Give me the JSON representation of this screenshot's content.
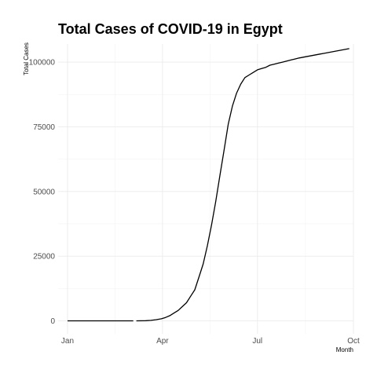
{
  "chart_data": {
    "type": "line",
    "title": "Total Cases of COVID-19 in Egypt",
    "xlabel": "Month",
    "ylabel": "Total Cases",
    "x_ticks": [
      {
        "label": "Jan",
        "day": 0
      },
      {
        "label": "Apr",
        "day": 91
      },
      {
        "label": "Jul",
        "day": 182
      },
      {
        "label": "Oct",
        "day": 274
      }
    ],
    "y_ticks": [
      {
        "label": "0",
        "value": 0
      },
      {
        "label": "25000",
        "value": 25000
      },
      {
        "label": "50000",
        "value": 50000
      },
      {
        "label": "75000",
        "value": 75000
      },
      {
        "label": "100000",
        "value": 100000
      }
    ],
    "xlim_days": [
      -9,
      274
    ],
    "ylim": [
      -5000,
      107000
    ],
    "grid": true,
    "series": [
      {
        "name": "Total Cases",
        "segments": [
          {
            "days": [
              0,
              63
            ],
            "values": [
              0,
              0
            ]
          },
          {
            "days": [
              66,
              75,
              80,
              85,
              90,
              94,
              98,
              102,
              106,
              110,
              114,
              118,
              122,
              126,
              130,
              134,
              138,
              142,
              146,
              150,
              154,
              158,
              162,
              166,
              170,
              174,
              178,
              182,
              186,
              190,
              194,
              198,
              202,
              206,
              210,
              214,
              218,
              222,
              226,
              230,
              234,
              238,
              242,
              246,
              250,
              254,
              258,
              262,
              266,
              270
            ],
            "values": [
              0,
              80,
              200,
              450,
              800,
              1300,
              2000,
              3000,
              4000,
              5500,
              7000,
              9500,
              12000,
              17000,
              22000,
              29000,
              37000,
              46000,
              56000,
              66000,
              76000,
              83000,
              88000,
              91500,
              94000,
              95000,
              96000,
              97000,
              97500,
              98000,
              98800,
              99200,
              99600,
              100000,
              100400,
              100800,
              101200,
              101600,
              101900,
              102200,
              102500,
              102800,
              103100,
              103400,
              103700,
              104000,
              104300,
              104600,
              104900,
              105200
            ]
          }
        ]
      }
    ]
  }
}
